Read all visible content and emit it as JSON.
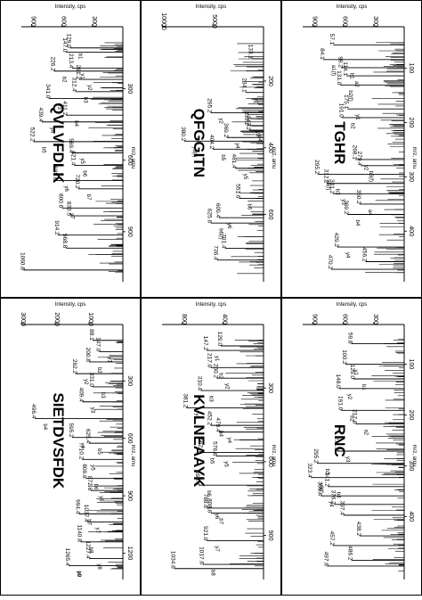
{
  "axis_labels": {
    "intensity": "Intensity, cps",
    "mz": "m/z, amu"
  },
  "chart_data": [
    {
      "type": "bar",
      "title": "TGHR",
      "xlabel": "m/z, amu",
      "ylabel": "Intensity, cps",
      "xlim": [
        50,
        480
      ],
      "ylim": [
        0,
        1000
      ],
      "x_ticks": [
        "100",
        "200",
        "300",
        "400"
      ],
      "y_ticks": [
        "300",
        "600",
        "900"
      ],
      "peaks": [
        {
          "mz": 57.1,
          "i": 700,
          "label": "57.1"
        },
        {
          "mz": 84.1,
          "i": 800,
          "label": "84.1"
        },
        {
          "mz": 99.2,
          "i": 620,
          "label": "99.2"
        },
        {
          "mz": 114.1,
          "i": 570,
          "label": "114.1"
        },
        {
          "mz": 131.0,
          "i": 630,
          "label": "131.0"
        },
        {
          "mz": 175.1,
          "i": 560,
          "label": "175.1"
        },
        {
          "mz": 191.0,
          "i": 610,
          "label": "191.0"
        },
        {
          "mz": 268.1,
          "i": 480,
          "label": "268.1"
        },
        {
          "mz": 279.4,
          "i": 430,
          "label": "279.4"
        },
        {
          "mz": 295.2,
          "i": 850,
          "label": "295.2"
        },
        {
          "mz": 312.2,
          "i": 760,
          "label": "312.2"
        },
        {
          "mz": 331.2,
          "i": 700,
          "label": "331.2"
        },
        {
          "mz": 350.2,
          "i": 440,
          "label": "350.2"
        },
        {
          "mz": 369.2,
          "i": 560,
          "label": "369.2"
        },
        {
          "mz": 429.2,
          "i": 660,
          "label": "429.2"
        },
        {
          "mz": 456.2,
          "i": 380,
          "label": "456.2"
        },
        {
          "mz": 470.2,
          "i": 720,
          "label": "470.2"
        }
      ],
      "ion_labels": [
        "a1(f)",
        "b1",
        "a2",
        "b2(f)",
        "y1",
        "b2",
        "y2",
        "b3(f)",
        "y3(f)",
        "b3",
        "y3",
        "a4",
        "b4",
        "y4"
      ],
      "grass_seed": 11
    },
    {
      "type": "bar",
      "title": "QFGGITN",
      "xlabel": "m/z, amu",
      "ylabel": "Intensity, cps",
      "xlim": [
        80,
        780
      ],
      "ylim": [
        0,
        10000
      ],
      "x_ticks": [
        "200",
        "400",
        "600"
      ],
      "y_ticks": [
        "5000",
        "10000"
      ],
      "peaks": [
        {
          "mz": 133.1,
          "i": 1200,
          "label": "133.1"
        },
        {
          "mz": 234.1,
          "i": 1800,
          "label": "234.1"
        },
        {
          "mz": 295.2,
          "i": 5200,
          "label": "295.2"
        },
        {
          "mz": 333.2,
          "i": 1600,
          "label": "333.2"
        },
        {
          "mz": 347.2,
          "i": 1400,
          "label": "347.2"
        },
        {
          "mz": 369.2,
          "i": 3600,
          "label": "369.2"
        },
        {
          "mz": 380.2,
          "i": 7800,
          "label": "380.2"
        },
        {
          "mz": 404.2,
          "i": 5000,
          "label": "404.2"
        },
        {
          "mz": 461.4,
          "i": 2800,
          "label": "461.4"
        },
        {
          "mz": 551.6,
          "i": 2400,
          "label": "551.6"
        },
        {
          "mz": 609.4,
          "i": 4400,
          "label": "609.4"
        },
        {
          "mz": 625.6,
          "i": 5200,
          "label": "625.6"
        },
        {
          "mz": 701.4,
          "i": 3800,
          "label": "701.4"
        },
        {
          "mz": 736.4,
          "i": 4600,
          "label": "736.4"
        }
      ],
      "ion_labels": [
        "y1",
        "y2",
        "y3",
        "b4",
        "y4",
        "y3(f)",
        "b5",
        "y5",
        "b6",
        "y6",
        "b6(f)"
      ],
      "grass_seed": 23
    },
    {
      "type": "bar",
      "title": "QVLVFDLK",
      "xlabel": "m/z, amu",
      "ylabel": "Intensity, cps",
      "xlim": [
        100,
        1080
      ],
      "ylim": [
        0,
        1000
      ],
      "x_ticks": [
        "300",
        "600",
        "900"
      ],
      "y_ticks": [
        "300",
        "600",
        "900"
      ],
      "peaks": [
        {
          "mz": 147.0,
          "i": 560,
          "label": "147.0"
        },
        {
          "mz": 129.0,
          "i": 520,
          "label": "129.0"
        },
        {
          "mz": 213.4,
          "i": 500,
          "label": "213.4"
        },
        {
          "mz": 226.2,
          "i": 680,
          "label": "226.2"
        },
        {
          "mz": 261.2,
          "i": 430,
          "label": "261.2"
        },
        {
          "mz": 312.4,
          "i": 470,
          "label": "312.4"
        },
        {
          "mz": 341.0,
          "i": 730,
          "label": "341.0"
        },
        {
          "mz": 411.2,
          "i": 560,
          "label": "411.2"
        },
        {
          "mz": 439.4,
          "i": 800,
          "label": "439.4"
        },
        {
          "mz": 522.2,
          "i": 880,
          "label": "522.2"
        },
        {
          "mz": 569.4,
          "i": 500,
          "label": "569.4"
        },
        {
          "mz": 621.4,
          "i": 480,
          "label": "621.4"
        },
        {
          "mz": 685.6,
          "i": 660,
          "label": "685.6"
        },
        {
          "mz": 720.2,
          "i": 440,
          "label": "720.2"
        },
        {
          "mz": 800.6,
          "i": 600,
          "label": "800.6"
        },
        {
          "mz": 833.5,
          "i": 520,
          "label": "833.5"
        },
        {
          "mz": 914.2,
          "i": 640,
          "label": "914.2"
        },
        {
          "mz": 968.8,
          "i": 560,
          "label": "968.8"
        },
        {
          "mz": 1060.8,
          "i": 980,
          "label": "1060.8"
        }
      ],
      "ion_labels": [
        "b1",
        "y1",
        "b2",
        "y2",
        "b3",
        "y3",
        "b4",
        "y4",
        "b5",
        "y5",
        "b6",
        "y6",
        "b7",
        "y7"
      ],
      "grass_seed": 37
    },
    {
      "type": "bar",
      "title": "RNC",
      "xlabel": "m/z, amu",
      "ylabel": "Intensity, cps",
      "xlim": [
        50,
        510
      ],
      "ylim": [
        0,
        1000
      ],
      "x_ticks": [
        "100",
        "200",
        "300",
        "400"
      ],
      "y_ticks": [
        "300",
        "600",
        "900"
      ],
      "peaks": [
        {
          "mz": 59.8,
          "i": 520,
          "label": "59.8"
        },
        {
          "mz": 100.2,
          "i": 580,
          "label": "100.2"
        },
        {
          "mz": 129.0,
          "i": 500,
          "label": "129.0"
        },
        {
          "mz": 148.0,
          "i": 640,
          "label": "148.0"
        },
        {
          "mz": 191.0,
          "i": 620,
          "label": "191.0"
        },
        {
          "mz": 217.6,
          "i": 480,
          "label": "217.6"
        },
        {
          "mz": 271.2,
          "i": 660,
          "label": "271.2"
        },
        {
          "mz": 295.2,
          "i": 860,
          "label": "295.2"
        },
        {
          "mz": 323.4,
          "i": 920,
          "label": "323.4"
        },
        {
          "mz": 341.2,
          "i": 750,
          "label": "341.2"
        },
        {
          "mz": 359.4,
          "i": 820,
          "label": "359.4"
        },
        {
          "mz": 376.2,
          "i": 690,
          "label": "376.2"
        },
        {
          "mz": 397.4,
          "i": 600,
          "label": "397.4"
        },
        {
          "mz": 438.2,
          "i": 440,
          "label": "438.2"
        },
        {
          "mz": 457.2,
          "i": 700,
          "label": "457.2"
        },
        {
          "mz": 486.2,
          "i": 520,
          "label": "486.2"
        },
        {
          "mz": 497.6,
          "i": 760,
          "label": "497.6"
        }
      ],
      "ion_labels": [
        "y1",
        "b1",
        "y2",
        "b2",
        "a2",
        "y3",
        "b3",
        "y3(f)",
        "b4",
        "y4"
      ],
      "grass_seed": 53
    },
    {
      "type": "bar",
      "title": "KVLNEAAYK",
      "xlabel": "m/z, amu",
      "ylabel": "Intensity, cps",
      "xlim": [
        100,
        1050
      ],
      "ylim": [
        0,
        1000
      ],
      "x_ticks": [
        "300",
        "600",
        "900"
      ],
      "y_ticks": [
        "400",
        "800"
      ],
      "peaks": [
        {
          "mz": 129.0,
          "i": 420,
          "label": "129.0"
        },
        {
          "mz": 147.2,
          "i": 560,
          "label": "147.2"
        },
        {
          "mz": 217.0,
          "i": 520,
          "label": "217.0"
        },
        {
          "mz": 260.2,
          "i": 460,
          "label": "260.2"
        },
        {
          "mz": 310.4,
          "i": 620,
          "label": "310.4"
        },
        {
          "mz": 381.2,
          "i": 760,
          "label": "381.2"
        },
        {
          "mz": 452.2,
          "i": 520,
          "label": "452.2"
        },
        {
          "mz": 479.4,
          "i": 440,
          "label": "479.4"
        },
        {
          "mz": 562.4,
          "i": 610,
          "label": "562.4"
        },
        {
          "mz": 576.6,
          "i": 470,
          "label": "576.6"
        },
        {
          "mz": 695.4,
          "i": 640,
          "label": "695.4"
        },
        {
          "mz": 788.6,
          "i": 560,
          "label": "788.6"
        },
        {
          "mz": 808.6,
          "i": 520,
          "label": "808.6"
        },
        {
          "mz": 921.0,
          "i": 560,
          "label": "921.0"
        },
        {
          "mz": 1017.6,
          "i": 600,
          "label": "1017.6"
        },
        {
          "mz": 1034.6,
          "i": 880,
          "label": "1034.6"
        }
      ],
      "ion_labels": [
        "y1",
        "b2",
        "y2",
        "b3",
        "y3",
        "b4",
        "y4",
        "b5",
        "y5",
        "b6",
        "y6",
        "b7",
        "y7",
        "b8"
      ],
      "grass_seed": 71
    },
    {
      "type": "bar",
      "title": "SIETDVSFDK",
      "xlabel": "m/z, amu",
      "ylabel": "Intensity, cps",
      "xlim": [
        80,
        1300
      ],
      "ylim": [
        0,
        3000
      ],
      "x_ticks": [
        "300",
        "600",
        "900",
        "1200"
      ],
      "y_ticks": [
        "1000",
        "2000",
        "3000"
      ],
      "peaks": [
        {
          "mz": 88.1,
          "i": 900,
          "label": "88.1"
        },
        {
          "mz": 147.0,
          "i": 700,
          "label": "147.0"
        },
        {
          "mz": 200.8,
          "i": 1000,
          "label": "200.8"
        },
        {
          "mz": 262.2,
          "i": 1400,
          "label": "262.2"
        },
        {
          "mz": 331.0,
          "i": 900,
          "label": "331.0"
        },
        {
          "mz": 409.4,
          "i": 1200,
          "label": "409.4"
        },
        {
          "mz": 496.4,
          "i": 2600,
          "label": "496.4"
        },
        {
          "mz": 595.2,
          "i": 1500,
          "label": "595.2"
        },
        {
          "mz": 625.4,
          "i": 1000,
          "label": "625.4"
        },
        {
          "mz": 710.2,
          "i": 1200,
          "label": "710.2"
        },
        {
          "mz": 809.6,
          "i": 1100,
          "label": "809.6"
        },
        {
          "mz": 872.6,
          "i": 950,
          "label": "872.6"
        },
        {
          "mz": 994.4,
          "i": 1300,
          "label": "994.4"
        },
        {
          "mz": 1037.4,
          "i": 1050,
          "label": "1037.4"
        },
        {
          "mz": 1140.8,
          "i": 1250,
          "label": "1140.8"
        },
        {
          "mz": 1227.4,
          "i": 1000,
          "label": "1227.4"
        },
        {
          "mz": 1265.4,
          "i": 1600,
          "label": "1265.4"
        }
      ],
      "ion_labels": [
        "y1",
        "b2",
        "y2",
        "b3",
        "y3",
        "b4",
        "y4",
        "b5",
        "y5",
        "b6",
        "y6",
        "b7",
        "y7",
        "b8",
        "y8",
        "b9",
        "y9"
      ],
      "grass_seed": 97
    }
  ]
}
